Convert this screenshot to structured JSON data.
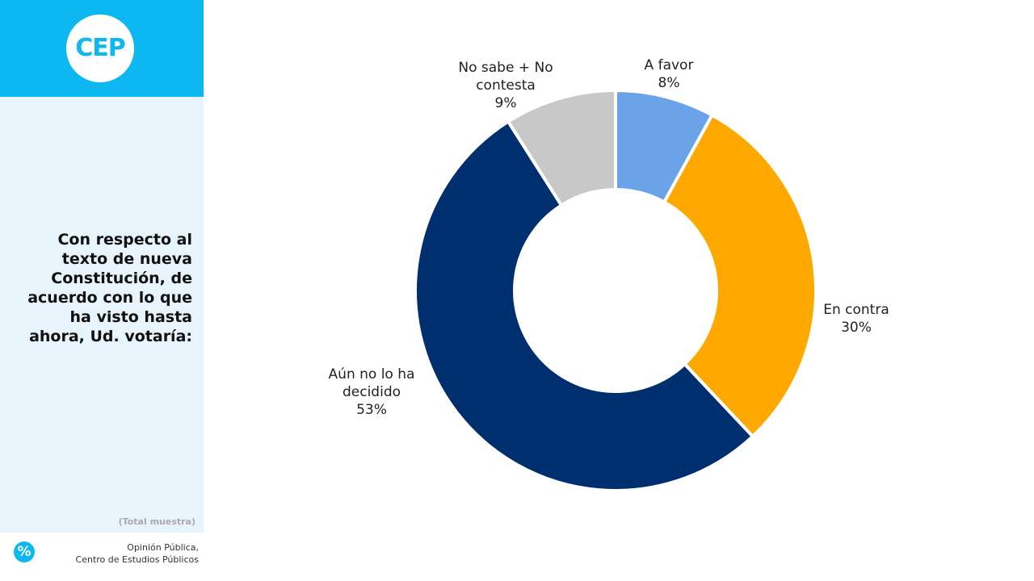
{
  "logo": "CEP",
  "note": "(Total muestra)",
  "footer": [
    "Opinión Pública,",
    "Centro de Estudios Públicos"
  ],
  "icon": "%",
  "chart_data": {
    "type": "donut",
    "title": "Con respecto al texto de nueva Constitución, de acuerdo con lo que ha visto hasta ahora, Ud. votaría:",
    "categories": [
      "A favor",
      "En contra",
      "Aún no lo ha decidido",
      "No sabe + No contesta"
    ],
    "values": [
      8,
      30,
      53,
      9
    ],
    "value_labels": [
      "8%",
      "30%",
      "53%",
      "9%"
    ],
    "colors": [
      "#6aa3e8",
      "#ffa800",
      "#002f6f",
      "#c8c8c8"
    ]
  }
}
